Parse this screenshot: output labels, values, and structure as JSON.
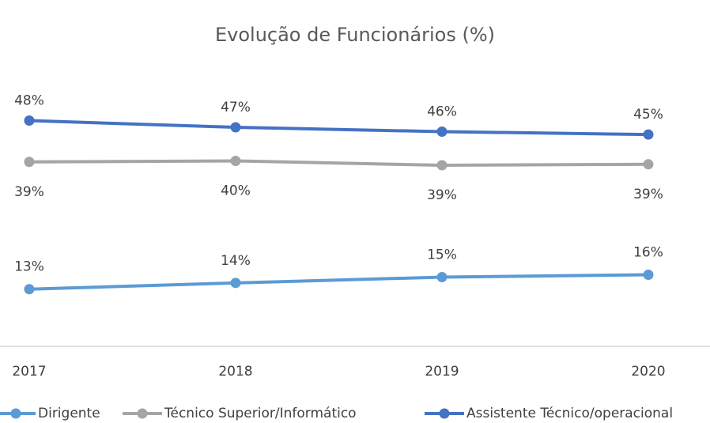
{
  "chart_data": {
    "type": "line",
    "title": "Evolução de Funcionários (%)",
    "categories": [
      "2017",
      "2018",
      "2019",
      "2020"
    ],
    "series": [
      {
        "name": "Dirigente",
        "color": "#5b9bd5",
        "values": [
          12.9,
          14.2,
          15.4,
          15.9
        ],
        "value_labels": [
          "13%",
          "14%",
          "15%",
          "16%"
        ]
      },
      {
        "name": "Técnico Superior/Informático",
        "color": "#a5a5a5",
        "values": [
          39.4,
          39.6,
          38.7,
          38.9
        ],
        "value_labels": [
          "39%",
          "40%",
          "39%",
          "39%"
        ]
      },
      {
        "name": "Assistente Técnico/operacional",
        "color": "#4472c4",
        "values": [
          48.0,
          46.6,
          45.7,
          45.1
        ],
        "value_labels": [
          "48%",
          "47%",
          "46%",
          "45%"
        ]
      }
    ],
    "ylim": [
      1,
      55
    ],
    "grid": false,
    "legend": "bottom"
  }
}
